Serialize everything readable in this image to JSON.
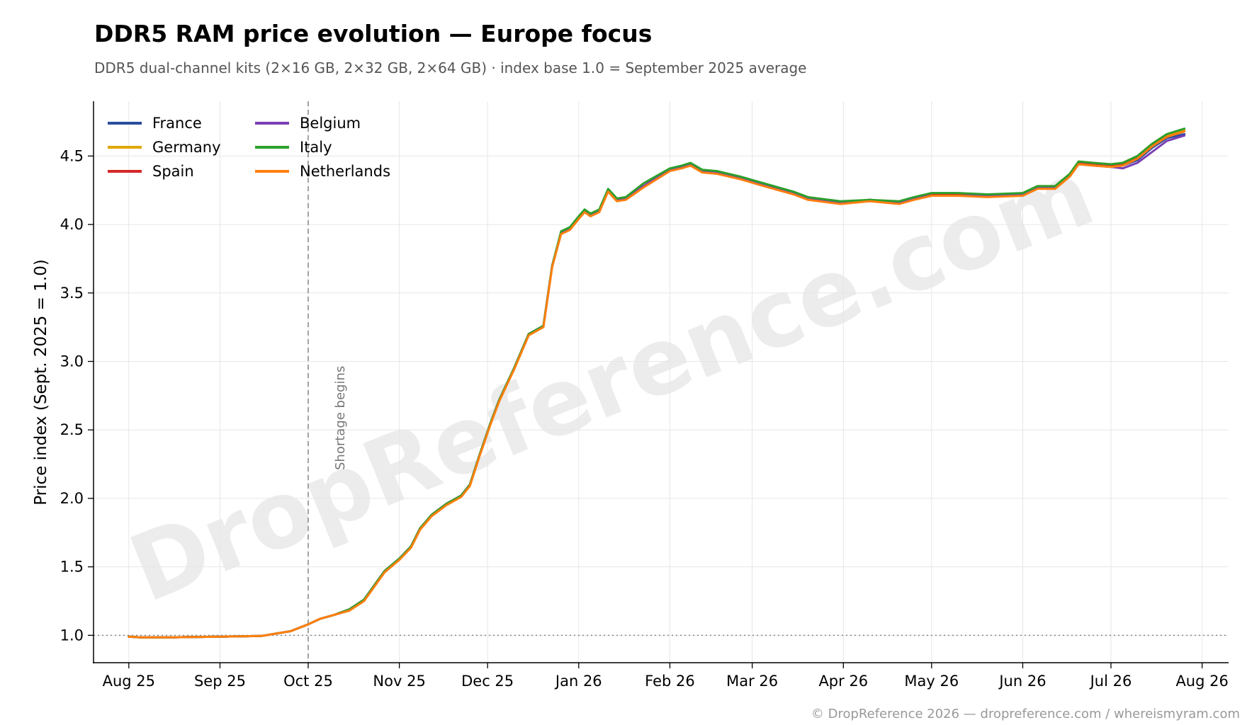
{
  "chart_data": {
    "type": "line",
    "title": "DDR5 RAM price evolution — Europe focus",
    "subtitle": "DDR5 dual-channel kits (2×16 GB, 2×32 GB, 2×64 GB) · index base 1.0 = September 2025 average",
    "ylabel": "Price index (Sept. 2025 = 1.0)",
    "xlabel": "",
    "ylim": [
      0.8,
      4.9
    ],
    "xlim": [
      "2025-07-20",
      "2026-08-10"
    ],
    "x_ticks": [
      "2025-08-01",
      "2025-09-01",
      "2025-10-01",
      "2025-11-01",
      "2025-12-01",
      "2026-01-01",
      "2026-02-01",
      "2026-03-01",
      "2026-04-01",
      "2026-05-01",
      "2026-06-01",
      "2026-07-01",
      "2026-08-01"
    ],
    "x_tick_labels": [
      "Aug 25",
      "Sep 25",
      "Oct 25",
      "Nov 25",
      "Dec 25",
      "Jan 26",
      "Feb 26",
      "Mar 26",
      "Apr 26",
      "May 26",
      "Jun 26",
      "Jul 26",
      "Aug 26"
    ],
    "y_ticks": [
      1.0,
      1.5,
      2.0,
      2.5,
      3.0,
      3.5,
      4.0,
      4.5
    ],
    "y_tick_labels": [
      "1.0",
      "1.5",
      "2.0",
      "2.5",
      "3.0",
      "3.5",
      "4.0",
      "4.5"
    ],
    "grid": true,
    "legend_position": "top-left",
    "reference_line": {
      "y": 1.0,
      "style": "dotted"
    },
    "annotation": {
      "x": "2025-10-01",
      "label": "Shortage begins",
      "style": "dashed-vertical"
    },
    "watermark": "DropReference.com",
    "copyright": "© DropReference 2026 — dropreference.com / whereismyram.com",
    "x": [
      "2025-08-01",
      "2025-08-05",
      "2025-08-15",
      "2025-09-01",
      "2025-09-15",
      "2025-09-25",
      "2025-10-01",
      "2025-10-05",
      "2025-10-10",
      "2025-10-15",
      "2025-10-20",
      "2025-10-24",
      "2025-10-27",
      "2025-11-01",
      "2025-11-05",
      "2025-11-08",
      "2025-11-12",
      "2025-11-17",
      "2025-11-22",
      "2025-11-25",
      "2025-11-28",
      "2025-12-02",
      "2025-12-05",
      "2025-12-10",
      "2025-12-15",
      "2025-12-20",
      "2025-12-23",
      "2025-12-26",
      "2025-12-29",
      "2026-01-01",
      "2026-01-03",
      "2026-01-05",
      "2026-01-08",
      "2026-01-11",
      "2026-01-14",
      "2026-01-17",
      "2026-01-23",
      "2026-02-01",
      "2026-02-05",
      "2026-02-08",
      "2026-02-12",
      "2026-02-17",
      "2026-02-25",
      "2026-03-05",
      "2026-03-15",
      "2026-03-20",
      "2026-03-31",
      "2026-04-10",
      "2026-04-20",
      "2026-04-25",
      "2026-05-01",
      "2026-05-10",
      "2026-05-20",
      "2026-06-01",
      "2026-06-06",
      "2026-06-12",
      "2026-06-17",
      "2026-06-20",
      "2026-06-25",
      "2026-07-01",
      "2026-07-05",
      "2026-07-10",
      "2026-07-15",
      "2026-07-20",
      "2026-07-26"
    ],
    "series": [
      {
        "name": "France",
        "color": "#2a4d9c",
        "values": [
          0.99,
          0.985,
          0.985,
          0.99,
          0.995,
          1.03,
          1.08,
          1.12,
          1.15,
          1.19,
          1.26,
          1.38,
          1.47,
          1.56,
          1.65,
          1.78,
          1.88,
          1.96,
          2.02,
          2.1,
          2.3,
          2.55,
          2.72,
          2.95,
          3.2,
          3.26,
          3.7,
          3.94,
          3.97,
          4.05,
          4.1,
          4.07,
          4.1,
          4.25,
          4.18,
          4.19,
          4.28,
          4.4,
          4.42,
          4.44,
          4.39,
          4.38,
          4.34,
          4.29,
          4.23,
          4.19,
          4.16,
          4.18,
          4.16,
          4.19,
          4.22,
          4.22,
          4.21,
          4.22,
          4.27,
          4.27,
          4.36,
          4.45,
          4.44,
          4.43,
          4.43,
          4.47,
          4.56,
          4.63,
          4.66
        ]
      },
      {
        "name": "Germany",
        "color": "#e0a800",
        "values": [
          0.99,
          0.985,
          0.985,
          0.99,
          0.995,
          1.03,
          1.08,
          1.12,
          1.15,
          1.19,
          1.26,
          1.38,
          1.47,
          1.56,
          1.65,
          1.78,
          1.88,
          1.96,
          2.02,
          2.1,
          2.3,
          2.55,
          2.72,
          2.95,
          3.2,
          3.26,
          3.7,
          3.94,
          3.97,
          4.05,
          4.1,
          4.07,
          4.1,
          4.25,
          4.18,
          4.19,
          4.28,
          4.4,
          4.42,
          4.44,
          4.39,
          4.38,
          4.34,
          4.29,
          4.23,
          4.19,
          4.16,
          4.18,
          4.16,
          4.19,
          4.22,
          4.22,
          4.21,
          4.23,
          4.28,
          4.28,
          4.37,
          4.46,
          4.45,
          4.44,
          4.45,
          4.5,
          4.59,
          4.65,
          4.69
        ]
      },
      {
        "name": "Spain",
        "color": "#d62728",
        "values": [
          0.99,
          0.985,
          0.985,
          0.99,
          0.995,
          1.03,
          1.08,
          1.12,
          1.15,
          1.19,
          1.26,
          1.38,
          1.47,
          1.56,
          1.65,
          1.78,
          1.88,
          1.96,
          2.02,
          2.1,
          2.3,
          2.55,
          2.72,
          2.95,
          3.2,
          3.26,
          3.7,
          3.94,
          3.97,
          4.05,
          4.1,
          4.07,
          4.1,
          4.25,
          4.18,
          4.19,
          4.28,
          4.4,
          4.42,
          4.44,
          4.39,
          4.38,
          4.34,
          4.29,
          4.23,
          4.19,
          4.16,
          4.18,
          4.16,
          4.19,
          4.22,
          4.22,
          4.21,
          4.22,
          4.27,
          4.27,
          4.36,
          4.45,
          4.44,
          4.43,
          4.44,
          4.49,
          4.58,
          4.64,
          4.68
        ]
      },
      {
        "name": "Belgium",
        "color": "#7b3fb5",
        "values": [
          0.99,
          0.985,
          0.985,
          0.99,
          0.995,
          1.03,
          1.08,
          1.12,
          1.15,
          1.19,
          1.26,
          1.38,
          1.47,
          1.56,
          1.65,
          1.78,
          1.88,
          1.96,
          2.02,
          2.1,
          2.3,
          2.55,
          2.72,
          2.95,
          3.2,
          3.26,
          3.7,
          3.94,
          3.97,
          4.05,
          4.1,
          4.07,
          4.1,
          4.25,
          4.18,
          4.19,
          4.28,
          4.4,
          4.42,
          4.44,
          4.39,
          4.38,
          4.34,
          4.29,
          4.23,
          4.19,
          4.16,
          4.18,
          4.16,
          4.19,
          4.21,
          4.21,
          4.21,
          4.22,
          4.27,
          4.27,
          4.35,
          4.44,
          4.43,
          4.42,
          4.41,
          4.45,
          4.53,
          4.61,
          4.65
        ]
      },
      {
        "name": "Italy",
        "color": "#2ca02c",
        "values": [
          0.99,
          0.985,
          0.985,
          0.99,
          0.995,
          1.03,
          1.08,
          1.12,
          1.15,
          1.19,
          1.26,
          1.38,
          1.47,
          1.56,
          1.65,
          1.78,
          1.88,
          1.96,
          2.02,
          2.1,
          2.3,
          2.55,
          2.72,
          2.95,
          3.2,
          3.26,
          3.7,
          3.95,
          3.98,
          4.06,
          4.11,
          4.08,
          4.11,
          4.26,
          4.19,
          4.2,
          4.3,
          4.41,
          4.43,
          4.45,
          4.4,
          4.39,
          4.35,
          4.3,
          4.24,
          4.2,
          4.17,
          4.18,
          4.17,
          4.2,
          4.23,
          4.23,
          4.22,
          4.23,
          4.28,
          4.28,
          4.37,
          4.46,
          4.45,
          4.44,
          4.45,
          4.5,
          4.59,
          4.66,
          4.7
        ]
      },
      {
        "name": "Netherlands",
        "color": "#ff7f0e",
        "values": [
          0.99,
          0.985,
          0.985,
          0.99,
          0.995,
          1.03,
          1.08,
          1.12,
          1.15,
          1.18,
          1.25,
          1.37,
          1.46,
          1.55,
          1.64,
          1.77,
          1.87,
          1.95,
          2.01,
          2.09,
          2.29,
          2.54,
          2.71,
          2.94,
          3.19,
          3.25,
          3.69,
          3.93,
          3.96,
          4.04,
          4.09,
          4.06,
          4.09,
          4.24,
          4.17,
          4.18,
          4.27,
          4.39,
          4.41,
          4.43,
          4.38,
          4.37,
          4.33,
          4.28,
          4.22,
          4.18,
          4.15,
          4.17,
          4.15,
          4.18,
          4.21,
          4.21,
          4.2,
          4.21,
          4.26,
          4.26,
          4.35,
          4.44,
          4.43,
          4.42,
          4.43,
          4.48,
          4.57,
          4.64,
          4.68
        ]
      }
    ]
  }
}
